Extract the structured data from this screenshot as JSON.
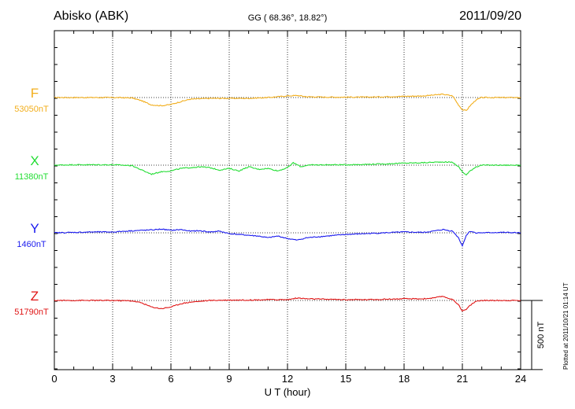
{
  "header": {
    "station": "Abisko (ABK)",
    "coords": "GG ( 68.36°,  18.82°)",
    "date": "2011/09/20"
  },
  "footer": {
    "plotted": "Plotted at 2011/10/21 01:14 UT"
  },
  "chart_data": {
    "type": "line",
    "xlabel": "U T (hour)",
    "xlim": [
      0,
      24
    ],
    "xticks": [
      0,
      3,
      6,
      9,
      12,
      15,
      18,
      21,
      24
    ],
    "grid": true,
    "scale_bar": {
      "label": "500 nT",
      "value": 500
    },
    "series": [
      {
        "name": "F",
        "baseline_label": "53050nT",
        "baseline": 53050,
        "color": "#f2ae1c",
        "x": [
          0,
          1,
          2,
          3,
          4,
          4.5,
          5,
          5.5,
          6,
          6.5,
          7,
          8,
          9,
          10,
          11,
          12,
          12.5,
          13,
          14,
          15,
          16,
          17,
          18,
          19,
          19.5,
          20,
          20.5,
          20.8,
          21,
          21.2,
          21.4,
          21.7,
          22,
          23,
          24
        ],
        "values": [
          0,
          0,
          0,
          0,
          -5,
          -40,
          -90,
          -100,
          -85,
          -50,
          -20,
          -10,
          -10,
          -10,
          0,
          20,
          25,
          10,
          5,
          5,
          5,
          10,
          15,
          20,
          30,
          40,
          20,
          -90,
          -150,
          -160,
          -100,
          -30,
          0,
          0,
          0
        ]
      },
      {
        "name": "X",
        "baseline_label": "11380nT",
        "baseline": 11380,
        "color": "#22dd33",
        "x": [
          0,
          1,
          2,
          3,
          4,
          4.5,
          5,
          5.5,
          6,
          6.5,
          7,
          7.5,
          8,
          8.5,
          9,
          9.5,
          10,
          10.5,
          11,
          11.5,
          12,
          12.3,
          12.7,
          13,
          14,
          15,
          16,
          17,
          18,
          19,
          20,
          20.5,
          20.8,
          21,
          21.2,
          21.4,
          21.7,
          22,
          23,
          24
        ],
        "values": [
          0,
          5,
          5,
          5,
          -5,
          -60,
          -110,
          -80,
          -70,
          -40,
          -30,
          -20,
          -30,
          -60,
          -40,
          -70,
          -20,
          -50,
          -40,
          -70,
          -30,
          30,
          -20,
          0,
          5,
          5,
          10,
          15,
          25,
          30,
          40,
          35,
          -20,
          -80,
          -120,
          -70,
          -20,
          0,
          0,
          0
        ]
      },
      {
        "name": "Y",
        "baseline_label": "1460nT",
        "baseline": 1460,
        "color": "#1a1aee",
        "x": [
          0,
          1,
          2,
          3,
          4,
          5,
          5.5,
          6,
          6.5,
          7,
          7.5,
          8,
          8.5,
          9,
          9.5,
          10,
          10.5,
          11,
          11.5,
          12,
          12.5,
          13,
          14,
          15,
          16,
          17,
          18,
          19,
          19.5,
          20,
          20.5,
          20.8,
          21,
          21.2,
          21.4,
          21.7,
          22,
          23,
          24
        ],
        "values": [
          0,
          5,
          10,
          10,
          25,
          35,
          45,
          30,
          40,
          20,
          25,
          10,
          20,
          -10,
          -20,
          -30,
          -40,
          -60,
          -40,
          -70,
          -90,
          -60,
          -40,
          -20,
          -10,
          0,
          10,
          5,
          20,
          40,
          20,
          -60,
          -160,
          -30,
          20,
          0,
          0,
          5,
          0
        ]
      },
      {
        "name": "Z",
        "baseline_label": "51790nT",
        "baseline": 51790,
        "color": "#e01515",
        "x": [
          0,
          1,
          2,
          3,
          4,
          4.5,
          5,
          5.5,
          6,
          6.5,
          7,
          8,
          9,
          10,
          11,
          12,
          12.5,
          13,
          14,
          15,
          16,
          17,
          18,
          19,
          19.5,
          20,
          20.5,
          20.8,
          21,
          21.2,
          21.4,
          21.7,
          22,
          23,
          24
        ],
        "values": [
          0,
          0,
          0,
          0,
          -5,
          -30,
          -80,
          -100,
          -80,
          -40,
          -20,
          0,
          5,
          5,
          10,
          10,
          30,
          20,
          15,
          10,
          10,
          15,
          20,
          20,
          30,
          50,
          10,
          -50,
          -130,
          -110,
          -60,
          -10,
          0,
          0,
          0
        ]
      }
    ]
  }
}
